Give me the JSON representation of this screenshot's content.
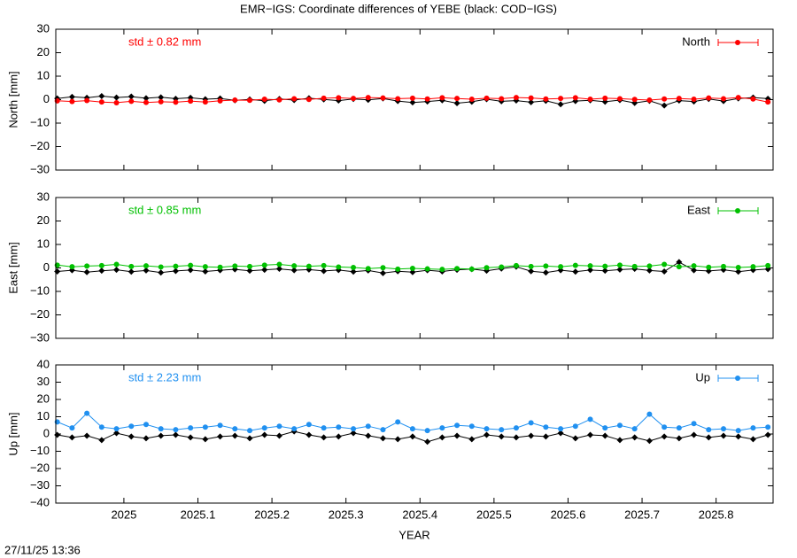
{
  "title": "EMR−IGS: Coordinate differences of YEBE (black: COD−IGS)",
  "timestamp": "27/11/25 13:36",
  "chart_data": [
    {
      "type": "line",
      "ylabel": "North [mm]",
      "annotation": "std ± 0.82 mm",
      "x": [
        2024.91,
        2024.93,
        2024.95,
        2024.97,
        2024.99,
        2025.01,
        2025.03,
        2025.05,
        2025.07,
        2025.09,
        2025.11,
        2025.13,
        2025.15,
        2025.17,
        2025.19,
        2025.21,
        2025.23,
        2025.25,
        2025.27,
        2025.29,
        2025.31,
        2025.33,
        2025.35,
        2025.37,
        2025.39,
        2025.41,
        2025.43,
        2025.45,
        2025.47,
        2025.49,
        2025.51,
        2025.53,
        2025.55,
        2025.57,
        2025.59,
        2025.61,
        2025.63,
        2025.65,
        2025.67,
        2025.69,
        2025.71,
        2025.73,
        2025.75,
        2025.77,
        2025.79,
        2025.81,
        2025.83,
        2025.85,
        2025.87
      ],
      "xlim": [
        2024.908,
        2025.877
      ],
      "xticks": [
        2025,
        2025.1,
        2025.2,
        2025.3,
        2025.4,
        2025.5,
        2025.6,
        2025.7,
        2025.8
      ],
      "ylim": [
        -30,
        30
      ],
      "yticks": [
        {
          "value": -30,
          "label": "−30"
        },
        {
          "value": -20,
          "label": "−20"
        },
        {
          "value": -10,
          "label": "−10"
        },
        0,
        10,
        20,
        30
      ],
      "series": [
        {
          "color": "#000000",
          "values": [
            0.5,
            1.2,
            0.8,
            1.5,
            0.9,
            1.3,
            0.6,
            1.0,
            0.4,
            0.8,
            0.2,
            0.5,
            -0.3,
            0.1,
            -0.5,
            0.3,
            -0.2,
            0.6,
            0.1,
            -0.4,
            0.3,
            -0.1,
            0.5,
            -0.6,
            -1.2,
            -0.8,
            -0.3,
            -1.5,
            -0.9,
            0.2,
            -0.7,
            -0.4,
            -1.1,
            -0.5,
            -2.0,
            -0.6,
            -0.3,
            -0.9,
            -0.2,
            -1.4,
            -0.5,
            -2.5,
            -0.4,
            -0.8,
            0.3,
            -0.6,
            0.5,
            0.9,
            0.4
          ]
        },
        {
          "name": "North",
          "color": "#ff0000",
          "values": [
            -0.5,
            -0.8,
            -0.4,
            -1.0,
            -1.3,
            -0.7,
            -1.2,
            -0.9,
            -1.1,
            -0.6,
            -1.0,
            -0.5,
            -0.2,
            -0.3,
            0.2,
            -0.1,
            0.4,
            0.1,
            0.6,
            0.8,
            0.5,
            0.9,
            0.7,
            0.4,
            0.6,
            0.3,
            0.8,
            0.5,
            0.2,
            0.6,
            0.4,
            0.9,
            0.7,
            0.3,
            0.5,
            0.8,
            0.2,
            0.6,
            0.4,
            0.1,
            -0.2,
            0.3,
            0.5,
            0.2,
            0.7,
            0.4,
            0.9,
            0.3,
            -1.0
          ]
        }
      ]
    },
    {
      "type": "line",
      "ylabel": "East [mm]",
      "annotation": "std ± 0.85 mm",
      "x": [
        2024.91,
        2024.93,
        2024.95,
        2024.97,
        2024.99,
        2025.01,
        2025.03,
        2025.05,
        2025.07,
        2025.09,
        2025.11,
        2025.13,
        2025.15,
        2025.17,
        2025.19,
        2025.21,
        2025.23,
        2025.25,
        2025.27,
        2025.29,
        2025.31,
        2025.33,
        2025.35,
        2025.37,
        2025.39,
        2025.41,
        2025.43,
        2025.45,
        2025.47,
        2025.49,
        2025.51,
        2025.53,
        2025.55,
        2025.57,
        2025.59,
        2025.61,
        2025.63,
        2025.65,
        2025.67,
        2025.69,
        2025.71,
        2025.73,
        2025.75,
        2025.77,
        2025.79,
        2025.81,
        2025.83,
        2025.85,
        2025.87
      ],
      "xlim": [
        2024.908,
        2025.877
      ],
      "xticks": [
        2025,
        2025.1,
        2025.2,
        2025.3,
        2025.4,
        2025.5,
        2025.6,
        2025.7,
        2025.8
      ],
      "ylim": [
        -30,
        30
      ],
      "yticks": [
        {
          "value": -30,
          "label": "−30"
        },
        {
          "value": -20,
          "label": "−20"
        },
        {
          "value": -10,
          "label": "−10"
        },
        0,
        10,
        20,
        30
      ],
      "series": [
        {
          "color": "#000000",
          "values": [
            -1.5,
            -1.0,
            -1.8,
            -1.2,
            -0.8,
            -1.6,
            -1.1,
            -2.0,
            -1.3,
            -0.9,
            -1.5,
            -1.0,
            -0.6,
            -1.2,
            -0.8,
            -0.4,
            -1.0,
            -0.7,
            -1.3,
            -0.9,
            -1.6,
            -1.1,
            -2.2,
            -1.4,
            -1.8,
            -1.0,
            -1.5,
            -0.8,
            -0.5,
            -1.2,
            -0.3,
            0.5,
            -1.4,
            -2.0,
            -1.0,
            -1.6,
            -0.9,
            -1.2,
            -0.7,
            -0.4,
            -1.1,
            -1.5,
            2.5,
            -1.0,
            -1.3,
            -0.8,
            -1.6,
            -0.9,
            -0.5
          ]
        },
        {
          "name": "East",
          "color": "#00c000",
          "values": [
            1.2,
            0.5,
            0.8,
            1.0,
            1.5,
            0.6,
            0.9,
            0.4,
            0.7,
            1.1,
            0.5,
            0.3,
            0.8,
            0.6,
            1.2,
            1.5,
            0.9,
            0.7,
            1.0,
            0.4,
            0.2,
            -0.3,
            0.1,
            -0.5,
            -0.2,
            -0.4,
            -0.6,
            -0.3,
            -0.5,
            0.1,
            0.4,
            1.0,
            0.6,
            0.8,
            0.5,
            1.1,
            0.9,
            0.7,
            1.2,
            0.6,
            0.8,
            1.5,
            0.5,
            0.9,
            0.3,
            0.6,
            0.2,
            0.5,
            1.0
          ]
        }
      ]
    },
    {
      "type": "line",
      "ylabel": "Up [mm]",
      "annotation": "std ± 2.23 mm",
      "xlabel": "YEAR",
      "x": [
        2024.91,
        2024.93,
        2024.95,
        2024.97,
        2024.99,
        2025.01,
        2025.03,
        2025.05,
        2025.07,
        2025.09,
        2025.11,
        2025.13,
        2025.15,
        2025.17,
        2025.19,
        2025.21,
        2025.23,
        2025.25,
        2025.27,
        2025.29,
        2025.31,
        2025.33,
        2025.35,
        2025.37,
        2025.39,
        2025.41,
        2025.43,
        2025.45,
        2025.47,
        2025.49,
        2025.51,
        2025.53,
        2025.55,
        2025.57,
        2025.59,
        2025.61,
        2025.63,
        2025.65,
        2025.67,
        2025.69,
        2025.71,
        2025.73,
        2025.75,
        2025.77,
        2025.79,
        2025.81,
        2025.83,
        2025.85,
        2025.87
      ],
      "xlim": [
        2024.908,
        2025.877
      ],
      "xticks": [
        2025,
        2025.1,
        2025.2,
        2025.3,
        2025.4,
        2025.5,
        2025.6,
        2025.7,
        2025.8
      ],
      "ylim": [
        -40,
        40
      ],
      "yticks": [
        {
          "value": -40,
          "label": "−40"
        },
        {
          "value": -30,
          "label": "−30"
        },
        {
          "value": -20,
          "label": "−20"
        },
        {
          "value": -10,
          "label": "−10"
        },
        0,
        10,
        20,
        30,
        40
      ],
      "series": [
        {
          "color": "#000000",
          "values": [
            -0.5,
            -2.0,
            -1.0,
            -3.5,
            0.5,
            -1.5,
            -2.5,
            -1.0,
            -0.5,
            -2.0,
            -3.0,
            -1.5,
            -1.0,
            -2.5,
            -0.5,
            -1.0,
            1.5,
            -0.5,
            -2.0,
            -1.5,
            0.5,
            -1.0,
            -2.5,
            -3.0,
            -1.5,
            -4.5,
            -2.0,
            -1.0,
            -3.0,
            -0.5,
            -1.5,
            -2.0,
            -1.0,
            -1.5,
            0.5,
            -2.5,
            -0.5,
            -1.0,
            -3.5,
            -2.0,
            -4.0,
            -1.5,
            -2.5,
            -0.5,
            -2.0,
            -1.0,
            -1.5,
            -3.0,
            -0.5
          ]
        },
        {
          "name": "Up",
          "color": "#2090f0",
          "values": [
            7.0,
            3.5,
            12.0,
            4.0,
            3.0,
            4.5,
            5.5,
            3.0,
            2.5,
            3.5,
            4.0,
            5.0,
            3.0,
            2.0,
            3.5,
            4.5,
            3.0,
            5.5,
            3.5,
            4.0,
            3.0,
            4.5,
            2.5,
            7.0,
            3.0,
            2.0,
            3.5,
            5.0,
            4.5,
            3.0,
            2.5,
            3.5,
            6.5,
            4.0,
            3.0,
            4.5,
            8.5,
            3.5,
            5.0,
            3.0,
            11.5,
            4.0,
            3.5,
            6.0,
            2.5,
            3.0,
            2.0,
            3.5,
            4.0
          ]
        }
      ]
    }
  ]
}
